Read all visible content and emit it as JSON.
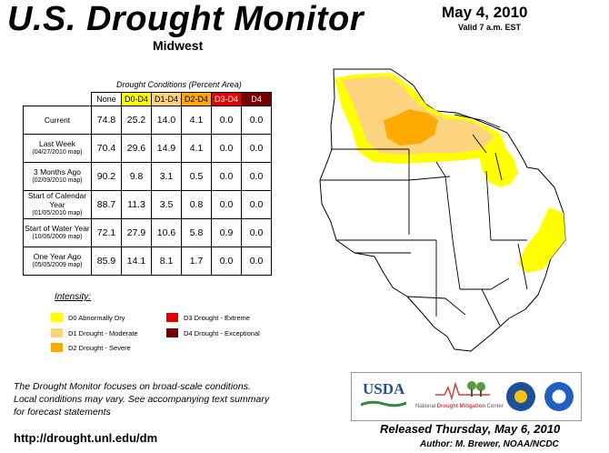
{
  "header": {
    "title": "U.S. Drought Monitor",
    "subtitle": "Midwest",
    "date": "May 4, 2010",
    "valid": "Valid 7 a.m. EST"
  },
  "table": {
    "caption": "Drought Conditions (Percent Area)",
    "columns": [
      "None",
      "D0-D4",
      "D1-D4",
      "D2-D4",
      "D3-D4",
      "D4"
    ],
    "rows": [
      {
        "label": "Current",
        "sub": "",
        "values": [
          "74.8",
          "25.2",
          "14.0",
          "4.1",
          "0.0",
          "0.0"
        ]
      },
      {
        "label": "Last Week",
        "sub": "(04/27/2010 map)",
        "values": [
          "70.4",
          "29.6",
          "14.9",
          "4.1",
          "0.0",
          "0.0"
        ]
      },
      {
        "label": "3 Months Ago",
        "sub": "(02/09/2010 map)",
        "values": [
          "90.2",
          "9.8",
          "3.1",
          "0.5",
          "0.0",
          "0.0"
        ]
      },
      {
        "label": "Start of Calendar Year",
        "sub": "(01/05/2010 map)",
        "values": [
          "88.7",
          "11.3",
          "3.5",
          "0.8",
          "0.0",
          "0.0"
        ]
      },
      {
        "label": "Start of Water Year",
        "sub": "(10/06/2009 map)",
        "values": [
          "72.1",
          "27.9",
          "10.6",
          "5.8",
          "0.9",
          "0.0"
        ]
      },
      {
        "label": "One Year Ago",
        "sub": "(05/05/2009 map)",
        "values": [
          "85.9",
          "14.1",
          "8.1",
          "1.7",
          "0.0",
          "0.0"
        ]
      }
    ]
  },
  "legend": {
    "title": "Intensity:",
    "items": [
      {
        "label": "D0 Abnormally Dry",
        "color": "#ffff00"
      },
      {
        "label": "D1 Drought - Moderate",
        "color": "#fcd37f"
      },
      {
        "label": "D2 Drought - Severe",
        "color": "#ffaa00"
      },
      {
        "label": "D3 Drought - Extreme",
        "color": "#e60000"
      },
      {
        "label": "D4 Drought - Exceptional",
        "color": "#730000"
      }
    ]
  },
  "footer": {
    "note1": "The Drought Monitor focuses on broad-scale conditions.",
    "note2": "Local conditions may vary. See accompanying text summary",
    "note3": "for forecast statements",
    "url": "http://drought.unl.edu/dm",
    "released": "Released Thursday, May 6, 2010",
    "author": "Author: M. Brewer, NOAA/NCDC"
  },
  "logos": {
    "usda": "USDA",
    "ndmc_a": "National ",
    "ndmc_b": "Drought Mitigation",
    "ndmc_c": " Center"
  }
}
